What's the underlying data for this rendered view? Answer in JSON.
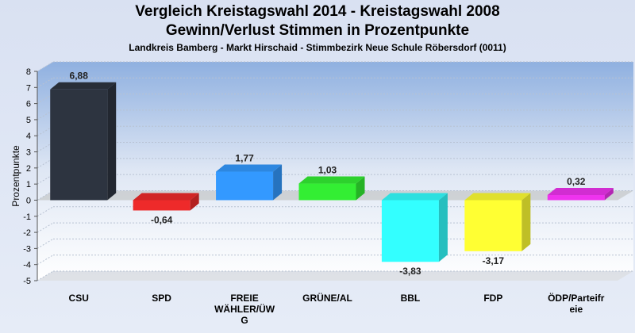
{
  "title": "Vergleich Kreistagswahl 2014 - Kreistagswahl 2008",
  "subtitle": "Gewinn/Verlust Stimmen in Prozentpunkte",
  "subsubtitle": "Landkreis Bamberg - Markt Hirschaid - Stimmbezirk Neue Schule Röbersdorf (0011)",
  "chart_data": {
    "type": "bar",
    "ylabel": "Prozentpunkte",
    "xlabel": "",
    "ylim": [
      -5,
      8
    ],
    "yticks": [
      "-5",
      "-4",
      "-3",
      "-2",
      "-1",
      "0",
      "1",
      "2",
      "3",
      "4",
      "5",
      "6",
      "7",
      "8"
    ],
    "grid": true,
    "categories": [
      [
        "CSU"
      ],
      [
        "SPD"
      ],
      [
        "FREIE",
        "WÄHLER/ÜW",
        "G"
      ],
      [
        "GRÜNE/AL"
      ],
      [
        "BBL"
      ],
      [
        "FDP"
      ],
      [
        "ÖDP/Parteifr",
        "eie"
      ]
    ],
    "values": [
      6.88,
      -0.64,
      1.77,
      1.03,
      -3.83,
      -3.17,
      0.32
    ],
    "value_labels": [
      "6,88",
      "-0,64",
      "1,77",
      "1,03",
      "-3,83",
      "-3,17",
      "0,32"
    ],
    "colors": [
      "#2d3440",
      "#ee2a2a",
      "#3399ff",
      "#33ee33",
      "#33ffff",
      "#ffff33",
      "#ee33ee"
    ]
  }
}
